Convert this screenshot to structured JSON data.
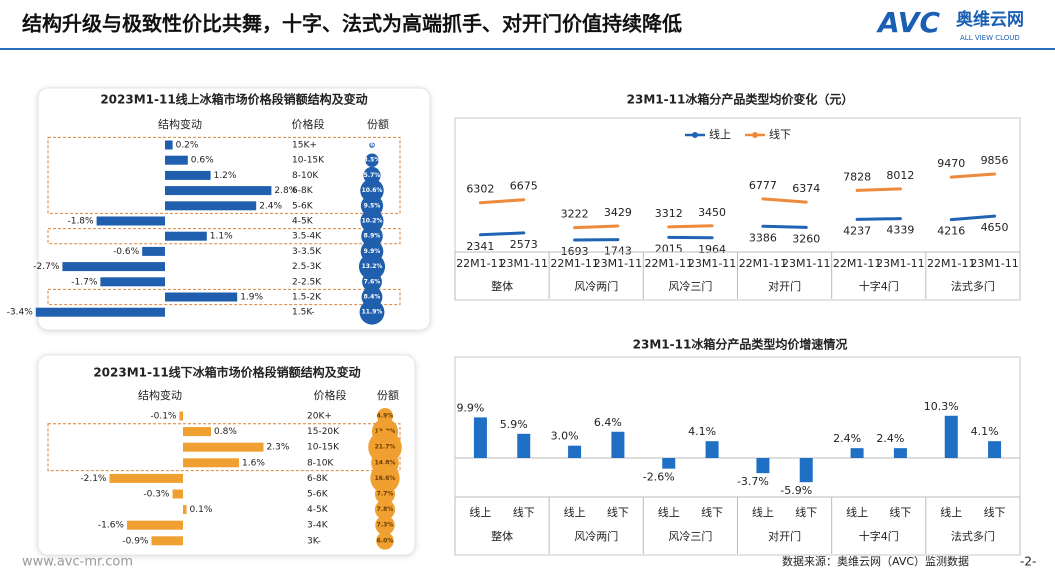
{
  "header": {
    "title": "结构升级与极致性价比共舞，十字、法式为高端抓手、对开门价值持续降低",
    "logo_text": "AVC",
    "logo_cn": "奥维云网",
    "logo_en": "ALL VIEW CLOUD"
  },
  "footer": {
    "website": "www.avc-mr.com",
    "source": "数据来源：奥维云网（AVC）监测数据",
    "page": "-2-"
  },
  "chart_data": [
    {
      "type": "hbar",
      "title": "2023M1-11线上冰箱市场价格段销额结构及变动",
      "column_labels": [
        "结构变动",
        "价格段",
        "份额"
      ],
      "categories": [
        "15K+",
        "10-15K",
        "8-10K",
        "6-8K",
        "5-6K",
        "4-5K",
        "3.5-4K",
        "3-3.5K",
        "2.5-3K",
        "2-2.5K",
        "1.5-2K",
        "1.5K-"
      ],
      "values": [
        0.2,
        0.6,
        1.2,
        2.8,
        2.4,
        -1.8,
        1.1,
        -0.6,
        -2.7,
        -1.7,
        1.9,
        -3.4
      ],
      "value_labels": [
        "0.2%",
        "0.6%",
        "1.2%",
        "2.8%",
        "2.4%",
        "-1.8%",
        "1.1%",
        "-0.6%",
        "-2.7%",
        "-1.7%",
        "1.9%",
        "-3.4%"
      ],
      "shares": [
        0.6,
        3.5,
        5.7,
        10.6,
        9.5,
        10.2,
        8.9,
        9.9,
        13.2,
        7.6,
        8.4,
        11.9
      ],
      "share_labels": [
        "0.6%",
        "3.5%",
        "5.7%",
        "10.6%",
        "9.5%",
        "10.2%",
        "8.9%",
        "9.9%",
        "13.2%",
        "7.6%",
        "8.4%",
        "11.9%"
      ],
      "color": "#1f5fae",
      "share_color": "#1f5fae"
    },
    {
      "type": "hbar",
      "title": "2023M1-11线下冰箱市场价格段销额结构及变动",
      "column_labels": [
        "结构变动",
        "价格段",
        "份额"
      ],
      "categories": [
        "20K+",
        "15-20K",
        "10-15K",
        "8-10K",
        "6-8K",
        "5-6K",
        "4-5K",
        "3-4K",
        "3K-"
      ],
      "values": [
        -0.1,
        0.8,
        2.3,
        1.6,
        -2.1,
        -0.3,
        0.1,
        -1.6,
        -0.9
      ],
      "value_labels": [
        "-0.1%",
        "0.8%",
        "2.3%",
        "1.6%",
        "-2.1%",
        "-0.3%",
        "0.1%",
        "-1.6%",
        "-0.9%"
      ],
      "shares": [
        4.9,
        13.2,
        21.7,
        14.8,
        16.6,
        7.7,
        7.8,
        7.3,
        6.0
      ],
      "share_labels": [
        "4.9%",
        "13.2%",
        "21.7%",
        "14.8%",
        "16.6%",
        "7.7%",
        "7.8%",
        "7.3%",
        "6.0%"
      ],
      "color": "#f0a030",
      "share_color": "#f0a030"
    },
    {
      "type": "line",
      "title": "23M1-11冰箱分产品类型均价变化（元）",
      "groups": [
        "整体",
        "风冷两门",
        "风冷三门",
        "对开门",
        "十字4门",
        "法式多门"
      ],
      "categories": [
        "22M1-11",
        "23M1-11",
        "22M1-11",
        "23M1-11",
        "22M1-11",
        "23M1-11",
        "22M1-11",
        "23M1-11",
        "22M1-11",
        "23M1-11",
        "22M1-11",
        "23M1-11"
      ],
      "series": [
        {
          "name": "线上",
          "color": "#2063b5",
          "values": [
            2341,
            2573,
            1693,
            1743,
            2015,
            1964,
            3386,
            3260,
            4237,
            4339,
            4216,
            4650
          ]
        },
        {
          "name": "线下",
          "color": "#ee8a3c",
          "values": [
            6302,
            6675,
            3222,
            3429,
            3312,
            3450,
            6777,
            6374,
            7828,
            8012,
            9470,
            9856
          ]
        }
      ]
    },
    {
      "type": "bar",
      "title": "23M1-11冰箱分产品类型均价增速情况",
      "groups": [
        "整体",
        "风冷两门",
        "风冷三门",
        "对开门",
        "十字4门",
        "法式多门"
      ],
      "categories": [
        "线上",
        "线下",
        "线上",
        "线下",
        "线上",
        "线下",
        "线上",
        "线下",
        "线上",
        "线下",
        "线上",
        "线下"
      ],
      "values": [
        9.9,
        5.9,
        3.0,
        6.4,
        -2.6,
        4.1,
        -3.7,
        -5.9,
        2.4,
        2.4,
        10.3,
        4.1
      ],
      "value_labels": [
        "9.9%",
        "5.9%",
        "3.0%",
        "6.4%",
        "-2.6%",
        "4.1%",
        "-3.7%",
        "-5.9%",
        "2.4%",
        "2.4%",
        "10.3%",
        "4.1%"
      ],
      "color": "#1f6fc4"
    }
  ]
}
